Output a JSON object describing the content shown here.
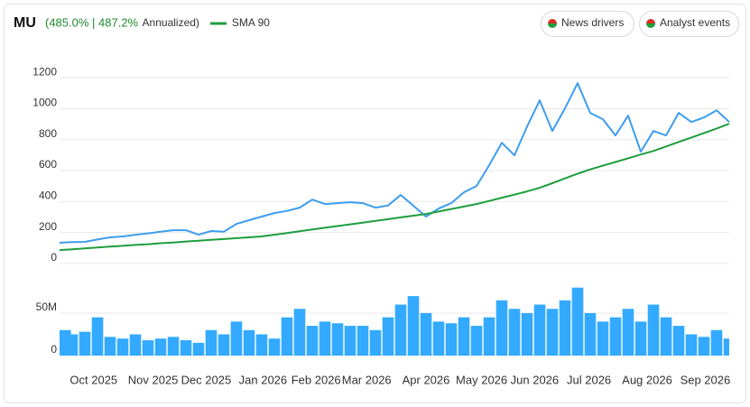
{
  "buttons": [
    "News drivers",
    "Analyst events"
  ],
  "chart_data": [
    {
      "type": "line",
      "title": "MU",
      "subtitle": "(485.0% | 487.2%",
      "subtitle_note": "Annualized)",
      "series": [
        {
          "color": "#3d9df0",
          "values": [
            134,
            138,
            140,
            155,
            169,
            175,
            186,
            195,
            205,
            215,
            215,
            186,
            210,
            205,
            256,
            280,
            303,
            326,
            340,
            361,
            413,
            384,
            390,
            396,
            390,
            361,
            375,
            443,
            373,
            303,
            355,
            390,
            460,
            501,
            635,
            780,
            699,
            885,
            1054,
            856,
            1002,
            1165,
            973,
            932,
            827,
            955,
            722,
            856,
            827,
            973,
            914,
            943,
            990,
            914
          ]
        },
        {
          "name": "SMA 90",
          "color": "#1e9e3e",
          "values": [
            87,
            92,
            98,
            103,
            109,
            114,
            120,
            125,
            131,
            136,
            142,
            147,
            153,
            158,
            164,
            169,
            175,
            186,
            197,
            208,
            220,
            231,
            242,
            253,
            264,
            275,
            286,
            298,
            309,
            320,
            336,
            352,
            368,
            384,
            404,
            425,
            445,
            466,
            489,
            519,
            550,
            580,
            608,
            632,
            656,
            680,
            704,
            727,
            756,
            785,
            814,
            843,
            872,
            903
          ]
        }
      ],
      "xlim": [
        0,
        53
      ],
      "ylim": [
        0,
        1300
      ],
      "yticks": [
        0,
        200,
        400,
        600,
        800,
        1000,
        1200
      ],
      "grid": true
    },
    {
      "type": "bar",
      "color": "#33aaff",
      "values": [
        30000000,
        25000000,
        28000000,
        45000000,
        22000000,
        20000000,
        25000000,
        18000000,
        20000000,
        22000000,
        18000000,
        15000000,
        30000000,
        25000000,
        40000000,
        30000000,
        25000000,
        20000000,
        45000000,
        55000000,
        35000000,
        40000000,
        38000000,
        35000000,
        35000000,
        30000000,
        45000000,
        60000000,
        70000000,
        50000000,
        40000000,
        38000000,
        45000000,
        35000000,
        45000000,
        65000000,
        55000000,
        50000000,
        60000000,
        55000000,
        65000000,
        80000000,
        50000000,
        40000000,
        45000000,
        55000000,
        40000000,
        60000000,
        45000000,
        35000000,
        25000000,
        22000000,
        30000000,
        20000000
      ],
      "xlim": [
        0,
        53
      ],
      "ylim": [
        0,
        85000000
      ],
      "yticks": [
        0,
        {
          "value": 50000000,
          "label": "50M"
        }
      ],
      "xticks": [
        {
          "value": 2.7,
          "label": "Oct 2025"
        },
        {
          "value": 7.4,
          "label": "Nov 2025"
        },
        {
          "value": 11.6,
          "label": "Dec 2025"
        },
        {
          "value": 16.1,
          "label": "Jan 2026"
        },
        {
          "value": 20.3,
          "label": "Feb 2026"
        },
        {
          "value": 24.3,
          "label": "Mar 2026"
        },
        {
          "value": 29,
          "label": "Apr 2026"
        },
        {
          "value": 33.4,
          "label": "May 2026"
        },
        {
          "value": 37.6,
          "label": "Jun 2026"
        },
        {
          "value": 41.9,
          "label": "Jul 2026"
        },
        {
          "value": 46.5,
          "label": "Aug 2026"
        },
        {
          "value": 51.1,
          "label": "Sep 2026"
        }
      ],
      "grid": true
    }
  ]
}
